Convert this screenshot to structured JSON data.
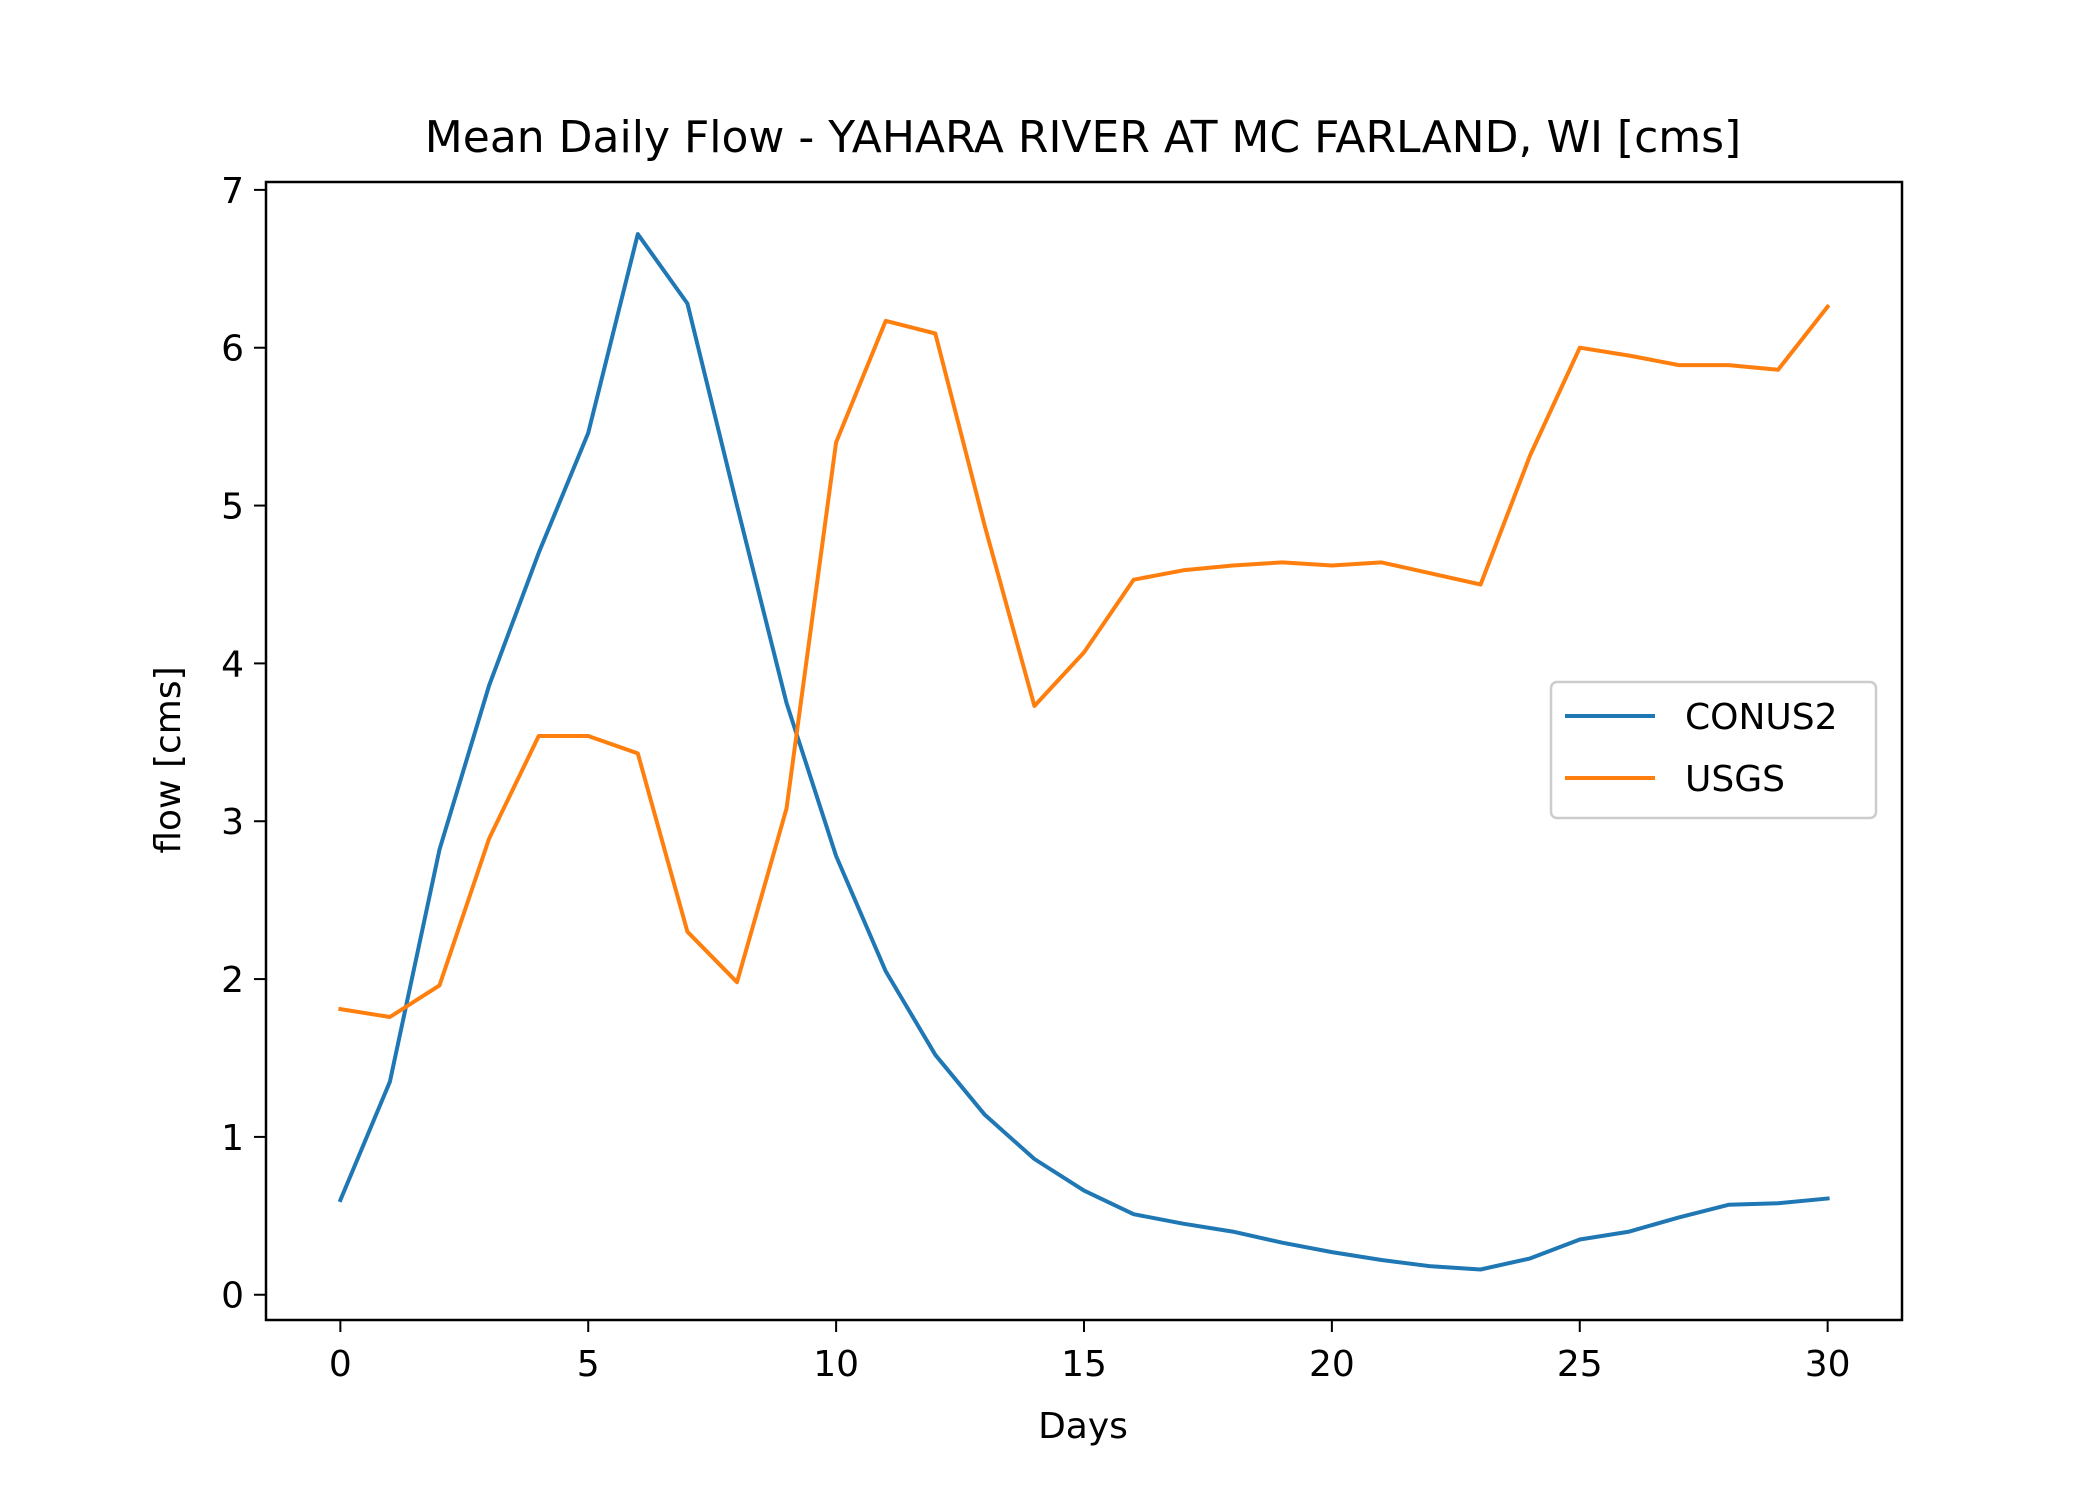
{
  "chart_data": {
    "type": "line",
    "title": "Mean Daily Flow - YAHARA RIVER AT MC FARLAND, WI [cms]",
    "xlabel": "Days",
    "ylabel": "flow [cms]",
    "xlim": [
      -1.5,
      31.5
    ],
    "ylim": [
      -0.16,
      7.05
    ],
    "xticks": [
      0,
      5,
      10,
      15,
      20,
      25,
      30
    ],
    "yticks": [
      0,
      1,
      2,
      3,
      4,
      5,
      6,
      7
    ],
    "grid": false,
    "legend_position": "center-right",
    "x": [
      0,
      1,
      2,
      3,
      4,
      5,
      6,
      7,
      8,
      9,
      10,
      11,
      12,
      13,
      14,
      15,
      16,
      17,
      18,
      19,
      20,
      21,
      22,
      23,
      24,
      25,
      26,
      27,
      28,
      29,
      30
    ],
    "series": [
      {
        "name": "CONUS2",
        "color": "#1f77b4",
        "values": [
          0.6,
          1.35,
          2.82,
          3.86,
          4.7,
          5.46,
          6.72,
          6.28,
          5.0,
          3.75,
          2.78,
          2.05,
          1.52,
          1.14,
          0.86,
          0.66,
          0.51,
          0.45,
          0.4,
          0.33,
          0.27,
          0.22,
          0.18,
          0.16,
          0.23,
          0.35,
          0.4,
          0.49,
          0.57,
          0.58,
          0.61
        ]
      },
      {
        "name": "USGS",
        "color": "#ff7f0e",
        "values": [
          1.81,
          1.76,
          1.96,
          2.89,
          3.54,
          3.54,
          3.43,
          2.3,
          1.98,
          3.08,
          5.4,
          6.17,
          6.09,
          4.87,
          3.73,
          4.07,
          4.53,
          4.59,
          4.62,
          4.64,
          4.62,
          4.64,
          4.57,
          4.5,
          5.32,
          6.0,
          5.95,
          5.89,
          5.89,
          5.86,
          6.26
        ]
      }
    ]
  }
}
